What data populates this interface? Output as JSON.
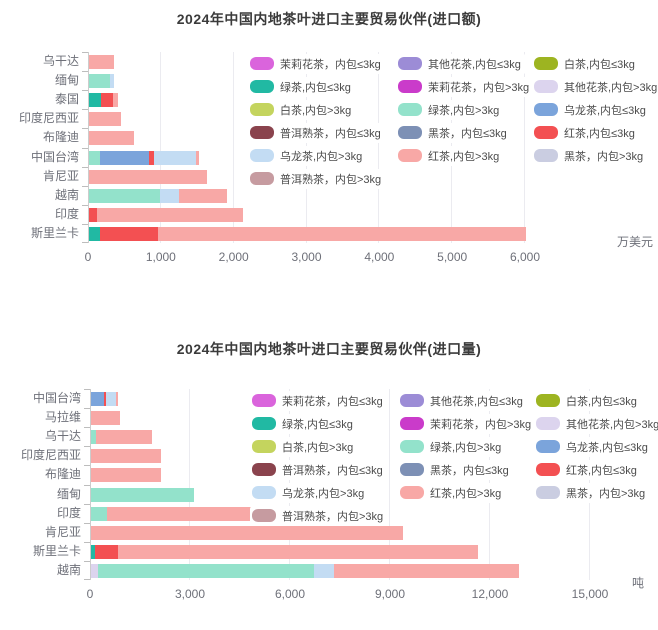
{
  "page": {
    "background": "#ffffff"
  },
  "legend": {
    "items": [
      {
        "label": "茉莉花茶，内包≤3kg",
        "color": "#DA64DC"
      },
      {
        "label": "其他花茶,内包≤3kg",
        "color": "#9C8CD6"
      },
      {
        "label": "白茶,内包≤3kg",
        "color": "#9DB421"
      },
      {
        "label": "绿茶,内包≤3kg",
        "color": "#21B9A3"
      },
      {
        "label": "茉莉花茶，内包>3kg",
        "color": "#CA3BCA"
      },
      {
        "label": "其他花茶,内包>3kg",
        "color": "#DCD4EE"
      },
      {
        "label": "白茶,内包>3kg",
        "color": "#C4D45E"
      },
      {
        "label": "绿茶,内包>3kg",
        "color": "#93E2CB"
      },
      {
        "label": "乌龙茶,内包≤3kg",
        "color": "#7BA4DB"
      },
      {
        "label": "普洱熟茶，内包≤3kg",
        "color": "#8A434D"
      },
      {
        "label": "黑茶，内包≤3kg",
        "color": "#7D90B5"
      },
      {
        "label": "红茶,内包≤3kg",
        "color": "#F35052"
      },
      {
        "label": "乌龙茶,内包>3kg",
        "color": "#C3DCF3"
      },
      {
        "label": "红茶,内包>3kg",
        "color": "#F8A8A6"
      },
      {
        "label": "黑茶，内包>3kg",
        "color": "#CACDE1"
      },
      {
        "label": "普洱熟茶，内包>3kg",
        "color": "#C69BA0"
      }
    ]
  },
  "chart_data": [
    {
      "type": "bar",
      "orientation": "horizontal",
      "stacked": true,
      "title": "2024年中国内地茶叶进口主要贸易伙伴(进口额)",
      "unit": "万美元",
      "xlim": [
        0,
        6000
      ],
      "xticks": [
        "0",
        "1,000",
        "2,000",
        "3,000",
        "4,000",
        "5,000",
        "6,000"
      ],
      "grid": true,
      "legend_position": "inside-top-right",
      "categories": [
        "乌干达",
        "缅甸",
        "泰国",
        "印度尼西亚",
        "布隆迪",
        "中国台湾",
        "肯尼亚",
        "越南",
        "印度",
        "斯里兰卡"
      ],
      "rows": [
        {
          "category": "乌干达",
          "segments": [
            {
              "series": "红茶,内包>3kg",
              "value": 340
            }
          ]
        },
        {
          "category": "缅甸",
          "segments": [
            {
              "series": "绿茶,内包>3kg",
              "value": 290
            },
            {
              "series": "乌龙茶,内包>3kg",
              "value": 60
            }
          ]
        },
        {
          "category": "泰国",
          "segments": [
            {
              "series": "绿茶,内包≤3kg",
              "value": 170
            },
            {
              "series": "红茶,内包≤3kg",
              "value": 165
            },
            {
              "series": "红茶,内包>3kg",
              "value": 60
            }
          ]
        },
        {
          "category": "印度尼西亚",
          "segments": [
            {
              "series": "红茶,内包>3kg",
              "value": 440
            }
          ]
        },
        {
          "category": "布隆迪",
          "segments": [
            {
              "series": "红茶,内包>3kg",
              "value": 620
            }
          ]
        },
        {
          "category": "中国台湾",
          "segments": [
            {
              "series": "绿茶,内包>3kg",
              "value": 150
            },
            {
              "series": "乌龙茶,内包≤3kg",
              "value": 670
            },
            {
              "series": "红茶,内包≤3kg",
              "value": 70
            },
            {
              "series": "乌龙茶,内包>3kg",
              "value": 575
            },
            {
              "series": "红茶,内包>3kg",
              "value": 45
            }
          ]
        },
        {
          "category": "肯尼亚",
          "segments": [
            {
              "series": "红茶,内包>3kg",
              "value": 1620
            }
          ]
        },
        {
          "category": "越南",
          "segments": [
            {
              "series": "绿茶,内包>3kg",
              "value": 970
            },
            {
              "series": "乌龙茶,内包>3kg",
              "value": 260
            },
            {
              "series": "红茶,内包>3kg",
              "value": 670
            }
          ]
        },
        {
          "category": "印度",
          "segments": [
            {
              "series": "红茶,内包≤3kg",
              "value": 110
            },
            {
              "series": "红茶,内包>3kg",
              "value": 2000
            }
          ]
        },
        {
          "category": "斯里兰卡",
          "segments": [
            {
              "series": "绿茶,内包≤3kg",
              "value": 150
            },
            {
              "series": "红茶,内包≤3kg",
              "value": 800
            },
            {
              "series": "红茶,内包>3kg",
              "value": 5050
            }
          ]
        }
      ]
    },
    {
      "type": "bar",
      "orientation": "horizontal",
      "stacked": true,
      "title": "2024年中国内地茶叶进口主要贸易伙伴(进口量)",
      "unit": "吨",
      "xlim": [
        0,
        15000
      ],
      "xticks": [
        "0",
        "3,000",
        "6,000",
        "9,000",
        "12,000",
        "15,000"
      ],
      "grid": true,
      "legend_position": "inside-top-right",
      "categories": [
        "中国台湾",
        "马拉维",
        "乌干达",
        "印度尼西亚",
        "布隆迪",
        "缅甸",
        "印度",
        "肯尼亚",
        "斯里兰卡",
        "越南"
      ],
      "rows": [
        {
          "category": "中国台湾",
          "segments": [
            {
              "series": "乌龙茶,内包≤3kg",
              "value": 400
            },
            {
              "series": "红茶,内包≤3kg",
              "value": 60
            },
            {
              "series": "乌龙茶,内包>3kg",
              "value": 300
            },
            {
              "series": "红茶,内包>3kg",
              "value": 60
            }
          ]
        },
        {
          "category": "马拉维",
          "segments": [
            {
              "series": "红茶,内包>3kg",
              "value": 870
            }
          ]
        },
        {
          "category": "乌干达",
          "segments": [
            {
              "series": "绿茶,内包>3kg",
              "value": 150
            },
            {
              "series": "红茶,内包>3kg",
              "value": 1680
            }
          ]
        },
        {
          "category": "印度尼西亚",
          "segments": [
            {
              "series": "红茶,内包>3kg",
              "value": 2100
            }
          ]
        },
        {
          "category": "布隆迪",
          "segments": [
            {
              "series": "红茶,内包>3kg",
              "value": 2100
            }
          ]
        },
        {
          "category": "缅甸",
          "segments": [
            {
              "series": "绿茶,内包>3kg",
              "value": 3090
            }
          ]
        },
        {
          "category": "印度",
          "segments": [
            {
              "series": "绿茶,内包>3kg",
              "value": 480
            },
            {
              "series": "红茶,内包>3kg",
              "value": 6190
            }
          ]
        },
        {
          "category": "肯尼亚",
          "segments": [
            {
              "series": "红茶,内包>3kg",
              "value": 9370
            }
          ]
        },
        {
          "category": "斯里兰卡",
          "segments": [
            {
              "series": "绿茶,内包≤3kg",
              "value": 120
            },
            {
              "series": "红茶,内包≤3kg",
              "value": 700
            },
            {
              "series": "红茶,内包>3kg",
              "value": 10800
            }
          ]
        },
        {
          "category": "越南",
          "segments": [
            {
              "series": "其他花茶,内包>3kg",
              "value": 210
            },
            {
              "series": "绿茶,内包>3kg",
              "value": 6480
            },
            {
              "series": "乌龙茶,内包>3kg",
              "value": 600
            },
            {
              "series": "红茶,内包>3kg",
              "value": 5560
            }
          ]
        }
      ]
    }
  ]
}
